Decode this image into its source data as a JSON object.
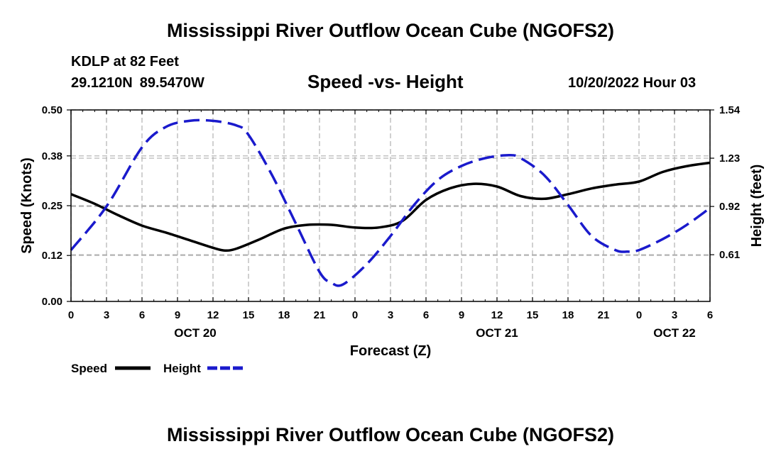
{
  "header": {
    "title": "Mississippi River Outflow Ocean Cube (NGOFS2)",
    "station": "KDLP at 82 Feet",
    "latitude": "29.1210N",
    "longitude": "89.5470W",
    "datetime": "10/20/2022 Hour 03"
  },
  "footer": {
    "title": "Mississippi River Outflow Ocean Cube (NGOFS2)"
  },
  "colors": {
    "speed": "#000000",
    "height": "#1a1acc",
    "grid": "#b0b0b0"
  },
  "chart_data": {
    "type": "line",
    "title": "Speed -vs- Height",
    "xlabel": "Forecast (Z)",
    "ylabel": "Speed (Knots)",
    "ylabel_right": "Height (feet)",
    "xlim": [
      0,
      54
    ],
    "ylim": [
      0,
      0.5
    ],
    "ylim_right": [
      0.31,
      1.54
    ],
    "x_ticks": [
      0,
      3,
      6,
      9,
      12,
      15,
      18,
      21,
      24,
      27,
      30,
      33,
      36,
      39,
      42,
      45,
      48,
      51,
      54
    ],
    "x_tick_labels": [
      "0",
      "3",
      "6",
      "9",
      "12",
      "15",
      "18",
      "21",
      "0",
      "3",
      "6",
      "9",
      "12",
      "15",
      "18",
      "21",
      "0",
      "3",
      "6"
    ],
    "date_labels": [
      {
        "x": 10.5,
        "label": "OCT 20"
      },
      {
        "x": 36,
        "label": "OCT 21"
      },
      {
        "x": 51,
        "label": "OCT 22"
      }
    ],
    "y_ticks": [
      0,
      0.12,
      0.25,
      0.38,
      0.5
    ],
    "y_tick_labels": [
      "0.00",
      "0.12",
      "0.25",
      "0.38",
      "0.50"
    ],
    "y_ticks_right": [
      0.61,
      0.92,
      1.23,
      1.54
    ],
    "y_tick_labels_right": [
      "0.61",
      "0.92",
      "1.23",
      "1.54"
    ],
    "grid": true,
    "legend_position": "bottom-left",
    "series": [
      {
        "name": "Speed",
        "axis": "left",
        "style": "solid",
        "x": [
          0,
          2,
          4,
          6,
          8,
          10,
          12,
          13,
          14,
          16,
          18,
          20,
          22,
          24,
          26,
          28,
          30,
          32,
          34,
          36,
          38,
          40,
          42,
          44,
          46,
          48,
          50,
          52,
          54
        ],
        "values": [
          0.28,
          0.255,
          0.225,
          0.198,
          0.18,
          0.16,
          0.14,
          0.133,
          0.138,
          0.163,
          0.19,
          0.2,
          0.2,
          0.193,
          0.193,
          0.21,
          0.265,
          0.295,
          0.307,
          0.3,
          0.275,
          0.268,
          0.28,
          0.295,
          0.305,
          0.313,
          0.338,
          0.353,
          0.362
        ]
      },
      {
        "name": "Height",
        "axis": "right",
        "style": "dashed",
        "x": [
          0,
          3,
          6,
          8,
          10,
          12,
          14,
          15,
          17,
          19,
          21,
          22,
          23,
          25,
          27,
          29,
          31,
          33,
          35,
          37,
          38,
          40,
          42,
          44,
          46,
          47,
          48,
          50,
          52,
          54
        ],
        "values": [
          0.64,
          0.92,
          1.3,
          1.43,
          1.47,
          1.47,
          1.44,
          1.38,
          1.12,
          0.81,
          0.5,
          0.43,
          0.42,
          0.55,
          0.73,
          0.93,
          1.09,
          1.18,
          1.23,
          1.25,
          1.23,
          1.12,
          0.93,
          0.73,
          0.64,
          0.63,
          0.64,
          0.71,
          0.8,
          0.91
        ]
      }
    ]
  }
}
